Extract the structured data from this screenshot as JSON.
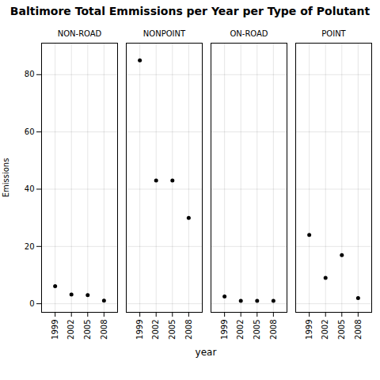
{
  "chart_data": {
    "type": "scatter",
    "title": "Baltimore Total Emmissions per Year per Type of Polutant",
    "xlabel": "year",
    "ylabel": "Emissions",
    "x": [
      1999,
      2002,
      2005,
      2008
    ],
    "series": [
      {
        "name": "NON-ROAD",
        "values": [
          6.1,
          3.2,
          3.0,
          1.1
        ]
      },
      {
        "name": "NONPOINT",
        "values": [
          85.0,
          43.0,
          43.0,
          30.0
        ]
      },
      {
        "name": "ON-ROAD",
        "values": [
          2.5,
          1.0,
          1.0,
          1.0
        ]
      },
      {
        "name": "POINT",
        "values": [
          24.0,
          9.0,
          17.0,
          2.0
        ]
      }
    ],
    "color": "#000000",
    "xlim": [
      1996.5,
      2010.5
    ],
    "xticks": [
      1999,
      2002,
      2005,
      2008
    ],
    "ylim": [
      -3,
      91
    ],
    "yticks": [
      0,
      20,
      40,
      60,
      80
    ],
    "grid": true
  }
}
